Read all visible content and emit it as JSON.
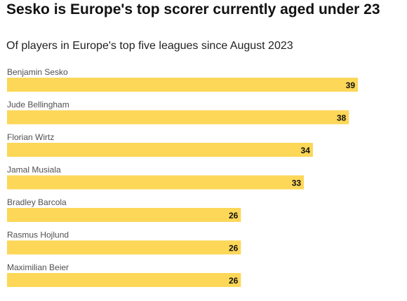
{
  "title": "Sesko is Europe's top scorer currently aged under 23",
  "subtitle": "Of players in Europe's top five leagues since August 2023",
  "chart_data": {
    "type": "bar",
    "orientation": "horizontal",
    "categories": [
      "Benjamin Sesko",
      "Jude Bellingham",
      "Florian Wirtz",
      "Jamal Musiala",
      "Bradley Barcola",
      "Rasmus Hojlund",
      "Maximilian Beier"
    ],
    "values": [
      39,
      38,
      34,
      33,
      26,
      26,
      26
    ],
    "xlim": [
      0,
      39
    ],
    "grid": false,
    "legend": "none",
    "bar_color": "#fcd758",
    "label_color": "#505050",
    "value_label_color": "#111111"
  }
}
